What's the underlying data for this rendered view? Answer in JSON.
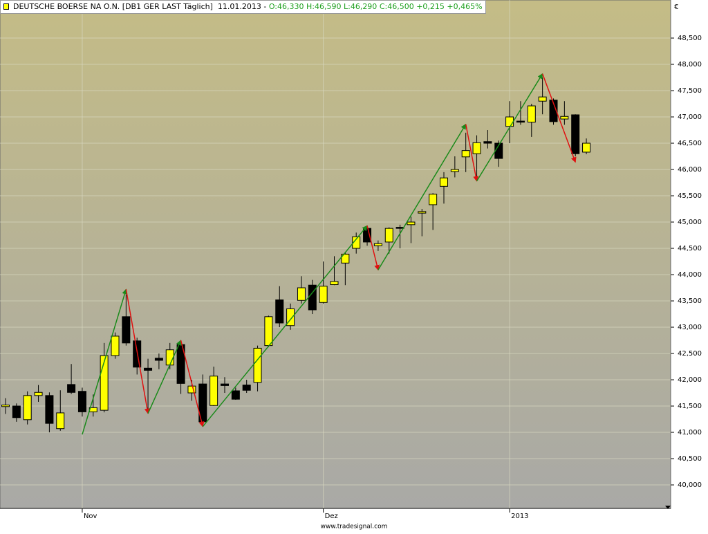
{
  "chart_data": {
    "type": "candlestick",
    "title": "DEUTSCHE BOERSE NA O.N.  [DB1 GER LAST Täglich]",
    "date": "11.01.2013 -",
    "quote": [
      "O:46,330",
      "H:46,590",
      "L:46,290",
      "C:46,500",
      "+0,215",
      "+0,465%"
    ],
    "currency": "€",
    "footer": "www.tradesignal.com",
    "categories": [
      null,
      null,
      null,
      null,
      null,
      null,
      null,
      "Nov",
      null,
      null,
      null,
      null,
      null,
      null,
      null,
      null,
      null,
      null,
      null,
      null,
      null,
      null,
      null,
      null,
      null,
      null,
      null,
      null,
      null,
      "Dez",
      null,
      null,
      null,
      null,
      null,
      null,
      null,
      null,
      null,
      null,
      null,
      null,
      null,
      null,
      null,
      null,
      "2013",
      null,
      null,
      null,
      null,
      null,
      null,
      null
    ],
    "open": [
      41.49,
      41.5,
      41.24,
      41.7,
      41.7,
      41.07,
      41.91,
      41.78,
      41.39,
      41.42,
      42.46,
      43.2,
      42.74,
      42.22,
      42.41,
      42.28,
      42.67,
      41.75,
      41.92,
      41.51,
      41.92,
      41.79,
      41.9,
      41.95,
      42.65,
      43.52,
      43.03,
      43.51,
      43.8,
      43.47,
      43.81,
      44.22,
      44.5,
      44.88,
      44.55,
      44.62,
      44.9,
      44.95,
      45.17,
      45.33,
      45.68,
      45.96,
      46.24,
      46.3,
      46.53,
      46.5,
      46.82,
      46.92,
      46.9,
      47.3,
      47.32,
      46.96,
      47.04,
      46.33
    ],
    "high": [
      41.65,
      41.55,
      41.78,
      41.9,
      41.76,
      41.8,
      42.3,
      41.85,
      41.72,
      42.7,
      42.9,
      43.62,
      42.8,
      42.4,
      42.5,
      42.7,
      42.7,
      42.0,
      42.1,
      42.25,
      42.05,
      41.85,
      42.0,
      42.65,
      43.22,
      43.78,
      43.45,
      43.97,
      43.9,
      44.25,
      44.35,
      44.42,
      44.8,
      44.92,
      44.65,
      44.9,
      44.95,
      45.1,
      45.25,
      45.55,
      45.95,
      46.25,
      46.7,
      46.65,
      46.75,
      46.55,
      47.3,
      47.3,
      47.25,
      47.75,
      47.35,
      47.3,
      47.05,
      46.59
    ],
    "low": [
      41.35,
      41.2,
      41.15,
      41.58,
      41.0,
      41.03,
      41.73,
      41.3,
      41.3,
      41.38,
      42.4,
      42.65,
      42.1,
      41.38,
      42.2,
      42.2,
      41.73,
      41.6,
      41.12,
      41.5,
      41.75,
      41.62,
      41.75,
      41.78,
      42.62,
      43.0,
      42.95,
      43.45,
      43.25,
      43.45,
      43.8,
      43.8,
      44.4,
      44.55,
      44.45,
      44.4,
      44.5,
      44.6,
      44.73,
      44.85,
      45.35,
      45.85,
      45.95,
      45.8,
      46.4,
      46.05,
      46.5,
      46.85,
      46.62,
      47.05,
      46.85,
      46.85,
      46.25,
      46.29
    ],
    "close": [
      41.52,
      41.28,
      41.7,
      41.76,
      41.17,
      41.37,
      41.76,
      41.39,
      41.47,
      42.46,
      42.83,
      42.7,
      42.24,
      42.18,
      42.37,
      42.57,
      41.93,
      41.88,
      41.2,
      42.07,
      41.89,
      41.63,
      41.8,
      42.6,
      43.2,
      43.08,
      43.35,
      43.75,
      43.33,
      43.78,
      43.87,
      44.39,
      44.72,
      44.62,
      44.59,
      44.88,
      44.88,
      45.0,
      45.2,
      45.53,
      45.84,
      46.0,
      46.36,
      46.51,
      46.5,
      46.21,
      47.0,
      46.9,
      47.21,
      47.38,
      46.91,
      47.01,
      46.3,
      46.5
    ],
    "up_color": "#ffff00",
    "down_color": "#000000",
    "zigzag": {
      "x": [
        7,
        11,
        13,
        16,
        18,
        33,
        34,
        42,
        43,
        49,
        52
      ],
      "values": [
        40.96,
        43.72,
        41.36,
        42.75,
        41.11,
        44.93,
        44.09,
        46.86,
        45.78,
        47.82,
        46.14
      ],
      "up_color": "#1a8a1a",
      "down_color": "#e01010"
    },
    "ylim": [
      39.553,
      49.224
    ],
    "yticks": [
      {
        "value": 40,
        "label": "40,000"
      },
      {
        "value": 40.5,
        "label": "40,500"
      },
      {
        "value": 41,
        "label": "41,000"
      },
      {
        "value": 41.5,
        "label": "41,500"
      },
      {
        "value": 42,
        "label": "42,000"
      },
      {
        "value": 42.5,
        "label": "42,500"
      },
      {
        "value": 43,
        "label": "43,000"
      },
      {
        "value": 43.5,
        "label": "43,500"
      },
      {
        "value": 44,
        "label": "44,000"
      },
      {
        "value": 44.5,
        "label": "44,500"
      },
      {
        "value": 45,
        "label": "45,000"
      },
      {
        "value": 45.5,
        "label": "45,500"
      },
      {
        "value": 46,
        "label": "46,000"
      },
      {
        "value": 46.5,
        "label": "46,500"
      },
      {
        "value": 47,
        "label": "47,000"
      },
      {
        "value": 47.5,
        "label": "47,500"
      },
      {
        "value": 48,
        "label": "48,000"
      },
      {
        "value": 48.5,
        "label": "48,500"
      }
    ],
    "grid": true
  }
}
